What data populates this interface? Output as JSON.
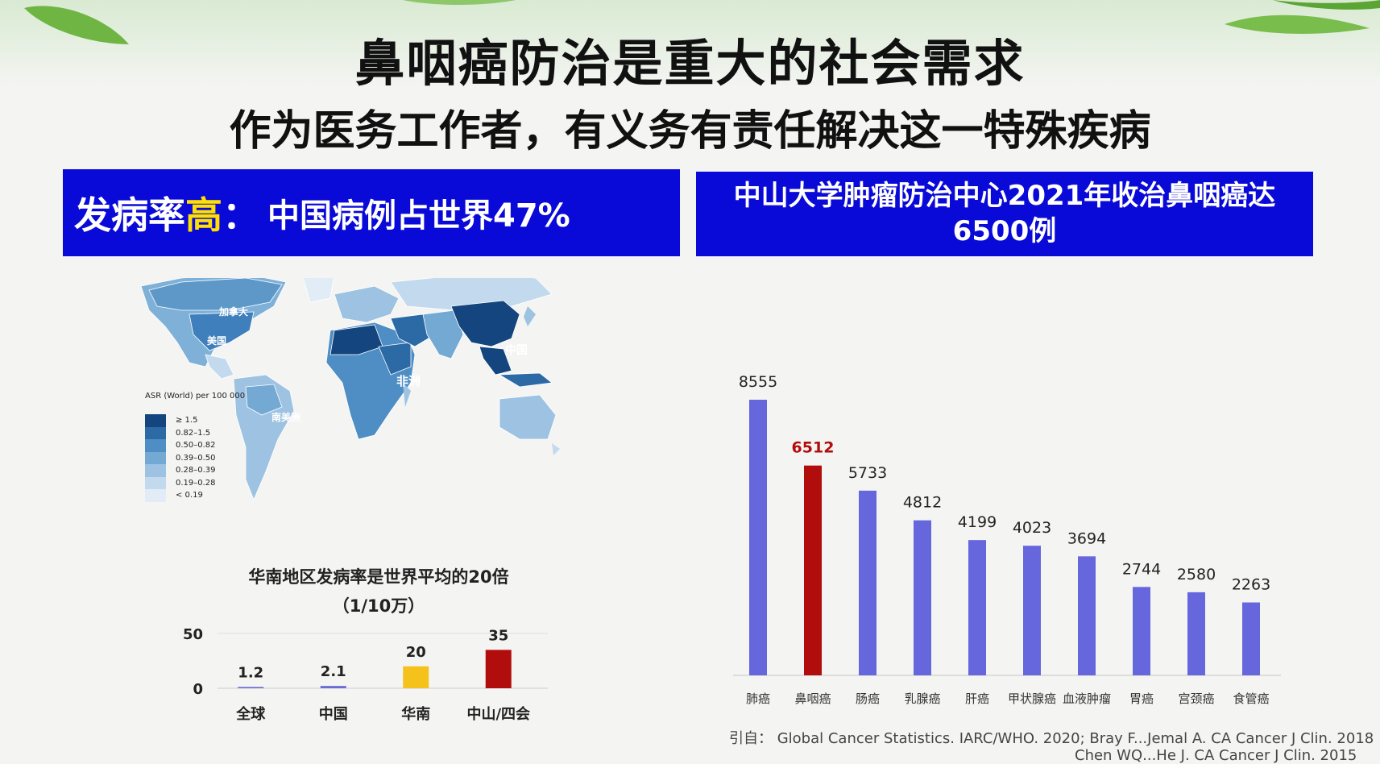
{
  "title": "鼻咽癌防治是重大的社会需求",
  "subtitle": "作为医务工作者，有义务有责任解决这一特殊疾病",
  "left_banner": {
    "prefix": "发病率",
    "highlight": "高",
    "suffix": "：",
    "text": "中国病例占世界47%"
  },
  "right_banner": {
    "line1": "中山大学肿瘤防治中心2021年收治鼻咽癌达",
    "line2": "6500例"
  },
  "map": {
    "labels": {
      "canada": "加拿大",
      "usa": "美国",
      "south_america": "南美洲",
      "africa": "非洲",
      "china": "中国"
    },
    "legend_title": "ASR (World) per 100 000",
    "legend_items": [
      {
        "label": "≥ 1.5",
        "color": "#14457e"
      },
      {
        "label": "0.82–1.5",
        "color": "#2c6aa6"
      },
      {
        "label": "0.50–0.82",
        "color": "#4f8ec4"
      },
      {
        "label": "0.39–0.50",
        "color": "#74a9d4"
      },
      {
        "label": "0.28–0.39",
        "color": "#9ec3e2"
      },
      {
        "label": "0.19–0.28",
        "color": "#c3d9ee"
      },
      {
        "label": "< 0.19",
        "color": "#e2ecf6"
      }
    ]
  },
  "chart_data": [
    {
      "type": "bar",
      "title": "华南地区发病率是世界平均的20倍",
      "subtitle": "（1/10万）",
      "categories": [
        "全球",
        "中国",
        "华南",
        "中山/四会"
      ],
      "values": [
        1.2,
        2.1,
        20,
        35
      ],
      "value_labels": [
        "1.2",
        "2.1",
        "20",
        "35"
      ],
      "colors": [
        "#6b6bd6",
        "#6b6bd6",
        "#f5c21b",
        "#b10d0d"
      ],
      "ylim": [
        0,
        50
      ],
      "yticks": [
        "0",
        "50"
      ],
      "grid": true
    },
    {
      "type": "bar",
      "categories": [
        "肺癌",
        "鼻咽癌",
        "肠癌",
        "乳腺癌",
        "肝癌",
        "甲状腺癌",
        "血液肿瘤",
        "胃癌",
        "宫颈癌",
        "食管癌"
      ],
      "values": [
        8555,
        6512,
        5733,
        4812,
        4199,
        4023,
        3694,
        2744,
        2580,
        2263
      ],
      "value_labels": [
        "8555",
        "6512",
        "5733",
        "4812",
        "4199",
        "4023",
        "3694",
        "2744",
        "2580",
        "2263"
      ],
      "colors": [
        "#6666dd",
        "#b10d0d",
        "#6666dd",
        "#6666dd",
        "#6666dd",
        "#6666dd",
        "#6666dd",
        "#6666dd",
        "#6666dd",
        "#6666dd"
      ],
      "highlight_label_color": "#b10d0d",
      "ylim": [
        0,
        8555
      ]
    }
  ],
  "reference": {
    "line1": "引自：  Global Cancer Statistics. IARC/WHO. 2020; Bray F...Jemal A. CA Cancer J Clin. 2018",
    "line2": "Chen WQ...He J. CA Cancer J Clin. 2015"
  }
}
